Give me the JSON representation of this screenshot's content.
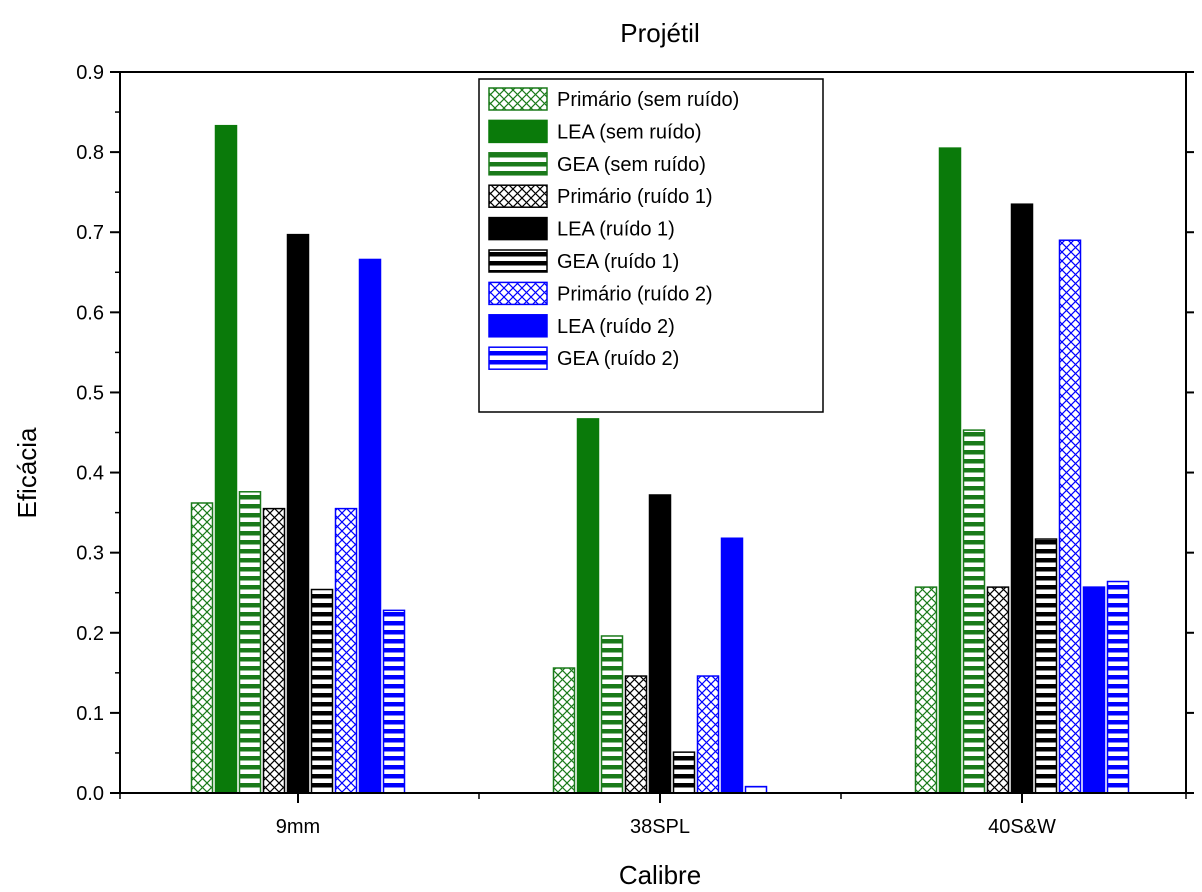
{
  "chart_data": {
    "type": "bar",
    "title": "Projétil",
    "xlabel": "Calibre",
    "ylabel": "Eficácia",
    "categories": [
      "9mm",
      "38SPL",
      "40S&W"
    ],
    "ylim": [
      0,
      0.9
    ],
    "yticks": [
      "0.0",
      "0.1",
      "0.2",
      "0.3",
      "0.4",
      "0.5",
      "0.6",
      "0.7",
      "0.8",
      "0.9"
    ],
    "grid": false,
    "legend_position": "top-center",
    "series": [
      {
        "name": "Primário (sem ruído)",
        "values": [
          0.362,
          0.156,
          0.257
        ],
        "color": "#1a7a1a",
        "pattern": "crosshatch"
      },
      {
        "name": "LEA (sem ruído)",
        "values": [
          0.833,
          0.467,
          0.805
        ],
        "color": "#0a7a0a",
        "pattern": "solid"
      },
      {
        "name": "GEA (sem ruído)",
        "values": [
          0.376,
          0.196,
          0.453
        ],
        "color": "#1a7a1a",
        "pattern": "horizontal"
      },
      {
        "name": "Primário (ruído 1)",
        "values": [
          0.355,
          0.146,
          0.257
        ],
        "color": "#000000",
        "pattern": "crosshatch"
      },
      {
        "name": "LEA (ruído 1)",
        "values": [
          0.697,
          0.372,
          0.735
        ],
        "color": "#000000",
        "pattern": "solid"
      },
      {
        "name": "GEA (ruído 1)",
        "values": [
          0.254,
          0.051,
          0.317
        ],
        "color": "#000000",
        "pattern": "horizontal"
      },
      {
        "name": "Primário (ruído 2)",
        "values": [
          0.355,
          0.146,
          0.69
        ],
        "color": "#0000ff",
        "pattern": "crosshatch"
      },
      {
        "name": "LEA (ruído 2)",
        "values": [
          0.666,
          0.318,
          0.257
        ],
        "color": "#0000ff",
        "pattern": "solid"
      },
      {
        "name": "GEA (ruído 2)",
        "values": [
          0.228,
          0.008,
          0.264
        ],
        "color": "#0000ff",
        "pattern": "horizontal"
      }
    ]
  }
}
